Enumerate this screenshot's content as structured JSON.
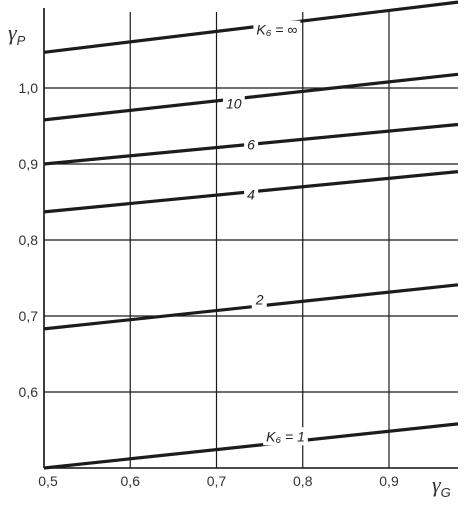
{
  "chart_data": {
    "type": "line",
    "title": "",
    "ylabel": {
      "symbol": "γ",
      "sub": "P"
    },
    "xlabel": {
      "symbol": "γ",
      "sub": "G"
    },
    "xlim": [
      0.5,
      0.98
    ],
    "ylim": [
      0.5,
      1.1
    ],
    "x_ticks": [
      0.5,
      0.6,
      0.7,
      0.8,
      0.9
    ],
    "x_tick_labels": [
      "0,5",
      "0,6",
      "0,7",
      "0,8",
      "0,9"
    ],
    "y_ticks": [
      0.6,
      0.7,
      0.8,
      0.9,
      1.0
    ],
    "y_tick_labels": [
      "0,6",
      "0,7",
      "0,8",
      "0,9",
      "1,0"
    ],
    "grid": true,
    "series": [
      {
        "name": "K₆ = ∞",
        "x": [
          0.5,
          0.98
        ],
        "y": [
          1.047,
          1.113
        ],
        "label_at": [
          0.77,
          1.075
        ]
      },
      {
        "name": "10",
        "x": [
          0.5,
          0.98
        ],
        "y": [
          0.958,
          1.018
        ],
        "label_at": [
          0.72,
          0.978
        ]
      },
      {
        "name": "6",
        "x": [
          0.5,
          0.98
        ],
        "y": [
          0.9,
          0.952
        ],
        "label_at": [
          0.74,
          0.924
        ]
      },
      {
        "name": "4",
        "x": [
          0.5,
          0.98
        ],
        "y": [
          0.837,
          0.89
        ],
        "label_at": [
          0.74,
          0.858
        ]
      },
      {
        "name": "2",
        "x": [
          0.5,
          0.98
        ],
        "y": [
          0.683,
          0.741
        ],
        "label_at": [
          0.75,
          0.72
        ]
      },
      {
        "name": "K₆ = 1",
        "x": [
          0.5,
          0.98
        ],
        "y": [
          0.5,
          0.558
        ],
        "label_at": [
          0.78,
          0.54
        ]
      }
    ]
  }
}
